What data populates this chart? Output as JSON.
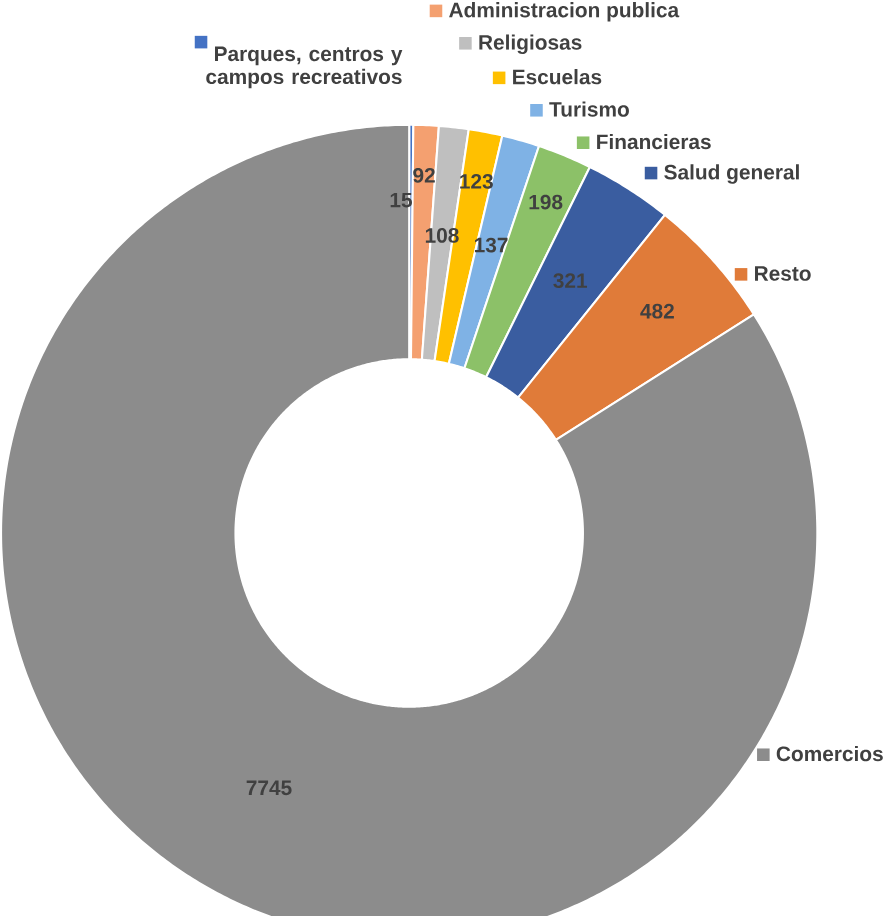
{
  "chart_data": {
    "type": "donut",
    "categories": [
      "Parques, centros y campos recreativos",
      "Administracion publica",
      "Religiosas",
      "Escuelas",
      "Turismo",
      "Financieras",
      "Salud general",
      "Resto",
      "Comercios"
    ],
    "values": [
      15,
      92,
      108,
      123,
      137,
      198,
      321,
      482,
      7745
    ],
    "colors": [
      "#4472c4",
      "#f4a070",
      "#bfbfbf",
      "#ffc000",
      "#7fb2e5",
      "#8cc168",
      "#3a5da0",
      "#e07b39",
      "#8c8c8c"
    ],
    "data_labels": true,
    "legend": "top right"
  }
}
